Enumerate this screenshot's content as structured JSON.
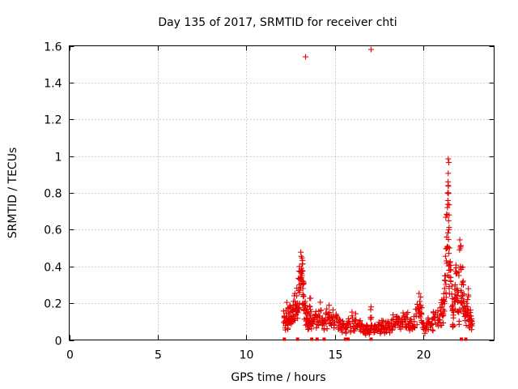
{
  "chart_data": {
    "type": "scatter",
    "title": "Day 135 of 2017, SRMTID for receiver chti",
    "xlabel": "GPS time / hours",
    "ylabel": "SRMTID / TECUs",
    "xlim": [
      0,
      24
    ],
    "ylim": [
      0,
      1.6
    ],
    "xticks": [
      0,
      5,
      10,
      15,
      20
    ],
    "xtick_labels": [
      "0",
      "5",
      "10",
      "15",
      "20"
    ],
    "yticks": [
      0,
      0.2,
      0.4,
      0.6,
      0.8,
      1,
      1.2,
      1.4,
      1.6
    ],
    "ytick_labels": [
      "0",
      "0.2",
      "0.4",
      "0.6",
      "0.8",
      "1",
      "1.2",
      "1.4",
      "1.6"
    ],
    "grid": true,
    "marker": "+",
    "color": "#e60000",
    "series": [
      {
        "name": "SRMTID",
        "outliers": [
          {
            "x": 13.35,
            "y": 1.54
          },
          {
            "x": 17.05,
            "y": 1.58
          }
        ],
        "points": [
          [
            12.15,
            0.13
          ],
          [
            12.2,
            0.09
          ],
          [
            12.25,
            0.16
          ],
          [
            12.3,
            0.12
          ],
          [
            12.35,
            0.08
          ],
          [
            12.4,
            0.14
          ],
          [
            12.45,
            0.18
          ],
          [
            12.5,
            0.11
          ],
          [
            12.55,
            0.15
          ],
          [
            12.6,
            0.1
          ],
          [
            12.65,
            0.19
          ],
          [
            12.7,
            0.13
          ],
          [
            12.75,
            0.21
          ],
          [
            12.8,
            0.16
          ],
          [
            12.85,
            0.24
          ],
          [
            12.9,
            0.2
          ],
          [
            12.95,
            0.27
          ],
          [
            13.0,
            0.3
          ],
          [
            13.05,
            0.33
          ],
          [
            13.1,
            0.37
          ],
          [
            13.12,
            0.39
          ],
          [
            13.15,
            0.35
          ],
          [
            13.18,
            0.32
          ],
          [
            13.2,
            0.28
          ],
          [
            13.25,
            0.24
          ],
          [
            13.3,
            0.2
          ],
          [
            13.35,
            0.17
          ],
          [
            13.4,
            0.12
          ],
          [
            13.45,
            0.15
          ],
          [
            13.5,
            0.1
          ],
          [
            13.55,
            0.14
          ],
          [
            13.6,
            0.18
          ],
          [
            13.65,
            0.12
          ],
          [
            13.7,
            0.09
          ],
          [
            13.8,
            0.11
          ],
          [
            13.9,
            0.14
          ],
          [
            14.0,
            0.1
          ],
          [
            14.1,
            0.13
          ],
          [
            14.2,
            0.16
          ],
          [
            14.3,
            0.12
          ],
          [
            14.4,
            0.1
          ],
          [
            14.5,
            0.14
          ],
          [
            14.6,
            0.11
          ],
          [
            14.7,
            0.15
          ],
          [
            14.8,
            0.12
          ],
          [
            14.9,
            0.13
          ],
          [
            15.0,
            0.1
          ],
          [
            15.1,
            0.12
          ],
          [
            15.2,
            0.08
          ],
          [
            15.3,
            0.1
          ],
          [
            15.4,
            0.07
          ],
          [
            15.5,
            0.09
          ],
          [
            15.6,
            0.06
          ],
          [
            15.7,
            0.08
          ],
          [
            15.8,
            0.1
          ],
          [
            15.9,
            0.07
          ],
          [
            16.0,
            0.12
          ],
          [
            16.1,
            0.09
          ],
          [
            16.2,
            0.11
          ],
          [
            16.3,
            0.08
          ],
          [
            16.4,
            0.1
          ],
          [
            16.5,
            0.07
          ],
          [
            16.6,
            0.06
          ],
          [
            16.7,
            0.05
          ],
          [
            16.8,
            0.07
          ],
          [
            16.9,
            0.05
          ],
          [
            17.0,
            0.06
          ],
          [
            17.05,
            0.18
          ],
          [
            17.1,
            0.08
          ],
          [
            17.2,
            0.06
          ],
          [
            17.3,
            0.07
          ],
          [
            17.4,
            0.05
          ],
          [
            17.5,
            0.08
          ],
          [
            17.6,
            0.06
          ],
          [
            17.7,
            0.09
          ],
          [
            17.8,
            0.06
          ],
          [
            17.9,
            0.08
          ],
          [
            18.0,
            0.1
          ],
          [
            18.1,
            0.07
          ],
          [
            18.2,
            0.09
          ],
          [
            18.3,
            0.11
          ],
          [
            18.4,
            0.08
          ],
          [
            18.5,
            0.1
          ],
          [
            18.6,
            0.12
          ],
          [
            18.7,
            0.09
          ],
          [
            18.8,
            0.11
          ],
          [
            18.9,
            0.13
          ],
          [
            19.0,
            0.1
          ],
          [
            19.1,
            0.12
          ],
          [
            19.2,
            0.09
          ],
          [
            19.3,
            0.11
          ],
          [
            19.4,
            0.08
          ],
          [
            19.5,
            0.1
          ],
          [
            19.6,
            0.13
          ],
          [
            19.7,
            0.16
          ],
          [
            19.8,
            0.21
          ],
          [
            19.85,
            0.19
          ],
          [
            19.9,
            0.14
          ],
          [
            20.0,
            0.09
          ],
          [
            20.1,
            0.06
          ],
          [
            20.2,
            0.08
          ],
          [
            20.3,
            0.1
          ],
          [
            20.4,
            0.07
          ],
          [
            20.5,
            0.09
          ],
          [
            20.6,
            0.12
          ],
          [
            20.7,
            0.15
          ],
          [
            20.8,
            0.13
          ],
          [
            20.9,
            0.11
          ],
          [
            21.0,
            0.14
          ],
          [
            21.05,
            0.18
          ],
          [
            21.1,
            0.13
          ],
          [
            21.15,
            0.22
          ],
          [
            21.2,
            0.28
          ],
          [
            21.25,
            0.35
          ],
          [
            21.3,
            0.43
          ],
          [
            21.32,
            0.56
          ],
          [
            21.35,
            0.68
          ],
          [
            21.38,
            0.8
          ],
          [
            21.4,
            0.86
          ],
          [
            21.42,
            0.84
          ],
          [
            21.45,
            0.68
          ],
          [
            21.48,
            0.5
          ],
          [
            21.5,
            0.42
          ],
          [
            21.55,
            0.34
          ],
          [
            21.6,
            0.25
          ],
          [
            21.65,
            0.17
          ],
          [
            21.7,
            0.12
          ],
          [
            21.75,
            0.22
          ],
          [
            21.8,
            0.3
          ],
          [
            21.85,
            0.36
          ],
          [
            21.9,
            0.28
          ],
          [
            21.95,
            0.21
          ],
          [
            22.0,
            0.15
          ],
          [
            22.05,
            0.49
          ],
          [
            22.1,
            0.4
          ],
          [
            22.15,
            0.26
          ],
          [
            22.2,
            0.2
          ],
          [
            22.25,
            0.32
          ],
          [
            22.3,
            0.25
          ],
          [
            22.35,
            0.18
          ],
          [
            22.4,
            0.13
          ],
          [
            22.45,
            0.2
          ],
          [
            22.5,
            0.22
          ],
          [
            22.55,
            0.16
          ],
          [
            22.6,
            0.11
          ],
          [
            22.65,
            0.15
          ],
          [
            22.7,
            0.13
          ],
          [
            22.75,
            0.1
          ]
        ],
        "near_zero_x": [
          12.15,
          12.9,
          13.7,
          14.0,
          14.4,
          15.6,
          15.75,
          17.05,
          22.15,
          22.4
        ]
      }
    ]
  }
}
